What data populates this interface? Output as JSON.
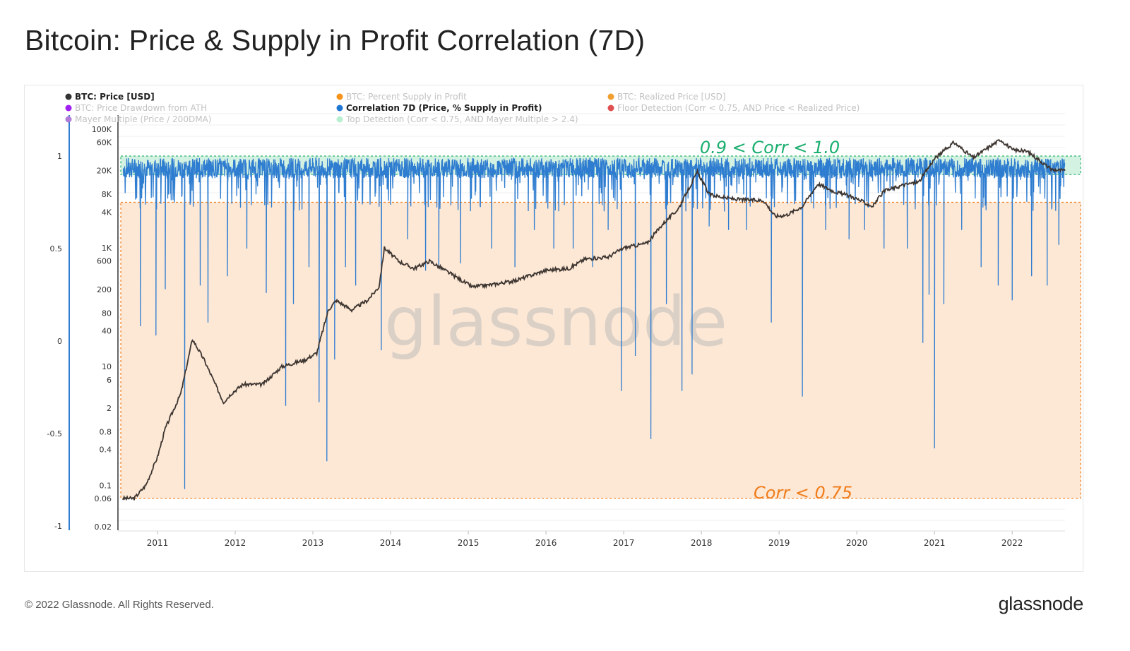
{
  "title": "Bitcoin: Price & Supply in Profit Correlation (7D)",
  "footer": {
    "copyright": "© 2022 Glassnode. All Rights Reserved.",
    "logo": "glassnode"
  },
  "watermark": "glassnode",
  "chart_data": {
    "type": "line",
    "legend_placement": "top",
    "legend": [
      {
        "label": "BTC: Price [USD]",
        "color": "#333333",
        "active": true
      },
      {
        "label": "BTC: Percent Supply in Profit",
        "color": "#f7931a",
        "active": false
      },
      {
        "label": "BTC: Realized Price [USD]",
        "color": "#f0a030",
        "active": false
      },
      {
        "label": "BTC: Price Drawdown from ATH",
        "color": "#a020f0",
        "active": false
      },
      {
        "label": "Correlation 7D (Price, % Supply in Profit)",
        "color": "#1f77d4",
        "active": true
      },
      {
        "label": "Floor Detection (Corr < 0.75, AND Price < Realized Price)",
        "color": "#e05050",
        "active": false
      },
      {
        "label": "Mayer Multiple (Price / 200DMA)",
        "color": "#b07cd8",
        "active": false
      },
      {
        "label": "Top Detection (Corr < 0.75, AND Mayer Multiple > 2.4)",
        "color": "#b8f0cf",
        "active": false
      }
    ],
    "annotations": [
      {
        "text": "0.9 < Corr < 1.0",
        "color": "#1aae6f"
      },
      {
        "text": "Corr < 0.75",
        "color": "#f07c1a"
      }
    ],
    "bands": [
      {
        "name": "top",
        "from": 0.9,
        "to": 1.0,
        "fill": "#d4f2e2",
        "border": "#2bb36f"
      },
      {
        "name": "low",
        "from": -0.85,
        "to": 0.75,
        "fill": "#fde8d6",
        "border": "#f07c1a"
      }
    ],
    "x_ticks": [
      "2011",
      "2012",
      "2013",
      "2014",
      "2015",
      "2016",
      "2017",
      "2018",
      "2019",
      "2020",
      "2021",
      "2022"
    ],
    "x_range": [
      2010.5,
      2022.68
    ],
    "y_left": {
      "ticks": [
        "1",
        "0.5",
        "0",
        "-0.5",
        "-1"
      ],
      "range": [
        -1,
        1.0
      ]
    },
    "y_price": {
      "scale": "log",
      "ticks": [
        "100K",
        "60K",
        "20K",
        "8K",
        "4K",
        "1K",
        "600",
        "200",
        "80",
        "40",
        "10",
        "6",
        "2",
        "0.8",
        "0.4",
        "0.1",
        "0.06",
        "0.02"
      ]
    },
    "series": [
      {
        "name": "BTC: Price [USD]",
        "axis": "price",
        "color": "#3d3530",
        "points": [
          [
            2010.55,
            0.06
          ],
          [
            2010.7,
            0.06
          ],
          [
            2010.85,
            0.1
          ],
          [
            2011.0,
            0.3
          ],
          [
            2011.1,
            0.9
          ],
          [
            2011.3,
            3.5
          ],
          [
            2011.45,
            29
          ],
          [
            2011.6,
            13
          ],
          [
            2011.85,
            2.5
          ],
          [
            2011.95,
            3.5
          ],
          [
            2012.1,
            5
          ],
          [
            2012.35,
            5
          ],
          [
            2012.6,
            10
          ],
          [
            2012.9,
            13
          ],
          [
            2013.05,
            17
          ],
          [
            2013.2,
            90
          ],
          [
            2013.3,
            130
          ],
          [
            2013.5,
            90
          ],
          [
            2013.7,
            130
          ],
          [
            2013.85,
            220
          ],
          [
            2013.92,
            1000
          ],
          [
            2014.0,
            800
          ],
          [
            2014.1,
            600
          ],
          [
            2014.3,
            450
          ],
          [
            2014.5,
            600
          ],
          [
            2014.8,
            350
          ],
          [
            2015.05,
            220
          ],
          [
            2015.3,
            240
          ],
          [
            2015.6,
            280
          ],
          [
            2016.0,
            420
          ],
          [
            2016.3,
            450
          ],
          [
            2016.5,
            650
          ],
          [
            2016.8,
            700
          ],
          [
            2017.0,
            1000
          ],
          [
            2017.3,
            1200
          ],
          [
            2017.5,
            2500
          ],
          [
            2017.7,
            4500
          ],
          [
            2017.95,
            19000
          ],
          [
            2018.1,
            8000
          ],
          [
            2018.3,
            7000
          ],
          [
            2018.5,
            6500
          ],
          [
            2018.8,
            6300
          ],
          [
            2018.95,
            3400
          ],
          [
            2019.1,
            3600
          ],
          [
            2019.3,
            5000
          ],
          [
            2019.5,
            12000
          ],
          [
            2019.7,
            9000
          ],
          [
            2019.95,
            7200
          ],
          [
            2020.2,
            5000
          ],
          [
            2020.35,
            9000
          ],
          [
            2020.6,
            11500
          ],
          [
            2020.8,
            13000
          ],
          [
            2021.0,
            32000
          ],
          [
            2021.25,
            60000
          ],
          [
            2021.5,
            33000
          ],
          [
            2021.7,
            50000
          ],
          [
            2021.85,
            67000
          ],
          [
            2022.0,
            45000
          ],
          [
            2022.2,
            42000
          ],
          [
            2022.35,
            30000
          ],
          [
            2022.5,
            21000
          ],
          [
            2022.68,
            20000
          ]
        ]
      },
      {
        "name": "Correlation 7D (Price, % Supply in Profit)",
        "axis": "left",
        "color": "#2f7dd0",
        "base_range": [
          0.88,
          0.99
        ],
        "spikes": [
          [
            2010.78,
            0.08
          ],
          [
            2010.98,
            0.03
          ],
          [
            2011.1,
            0.28
          ],
          [
            2011.35,
            -0.8
          ],
          [
            2011.55,
            0.3
          ],
          [
            2011.65,
            0.1
          ],
          [
            2011.9,
            0.35
          ],
          [
            2012.15,
            0.5
          ],
          [
            2012.4,
            0.26
          ],
          [
            2012.65,
            -0.35
          ],
          [
            2012.75,
            0.2
          ],
          [
            2012.95,
            0.4
          ],
          [
            2013.08,
            -0.33
          ],
          [
            2013.18,
            -0.65
          ],
          [
            2013.28,
            -0.1
          ],
          [
            2013.42,
            0.4
          ],
          [
            2013.55,
            0.3
          ],
          [
            2013.88,
            -0.05
          ],
          [
            2014.22,
            0.55
          ],
          [
            2014.45,
            0.38
          ],
          [
            2014.62,
            0.4
          ],
          [
            2014.9,
            0.42
          ],
          [
            2015.3,
            0.5
          ],
          [
            2015.6,
            0.4
          ],
          [
            2015.85,
            0.6
          ],
          [
            2016.1,
            0.5
          ],
          [
            2016.35,
            0.5
          ],
          [
            2016.6,
            0.4
          ],
          [
            2016.8,
            0.6
          ],
          [
            2016.97,
            -0.27
          ],
          [
            2017.15,
            -0.08
          ],
          [
            2017.35,
            -0.53
          ],
          [
            2017.55,
            0.2
          ],
          [
            2017.75,
            -0.27
          ],
          [
            2017.88,
            -0.18
          ],
          [
            2018.1,
            0.62
          ],
          [
            2018.35,
            0.6
          ],
          [
            2018.58,
            0.6
          ],
          [
            2018.9,
            0.1
          ],
          [
            2019.3,
            -0.3
          ],
          [
            2019.6,
            0.6
          ],
          [
            2019.9,
            0.55
          ],
          [
            2020.1,
            0.6
          ],
          [
            2020.35,
            0.5
          ],
          [
            2020.65,
            0.5
          ],
          [
            2020.85,
            -0.01
          ],
          [
            2020.93,
            0.25
          ],
          [
            2021.0,
            -0.58
          ],
          [
            2021.12,
            0.2
          ],
          [
            2021.35,
            0.6
          ],
          [
            2021.6,
            0.4
          ],
          [
            2021.82,
            0.3
          ],
          [
            2022.0,
            0.22
          ],
          [
            2022.25,
            0.35
          ],
          [
            2022.45,
            0.3
          ],
          [
            2022.6,
            0.52
          ]
        ]
      }
    ]
  }
}
